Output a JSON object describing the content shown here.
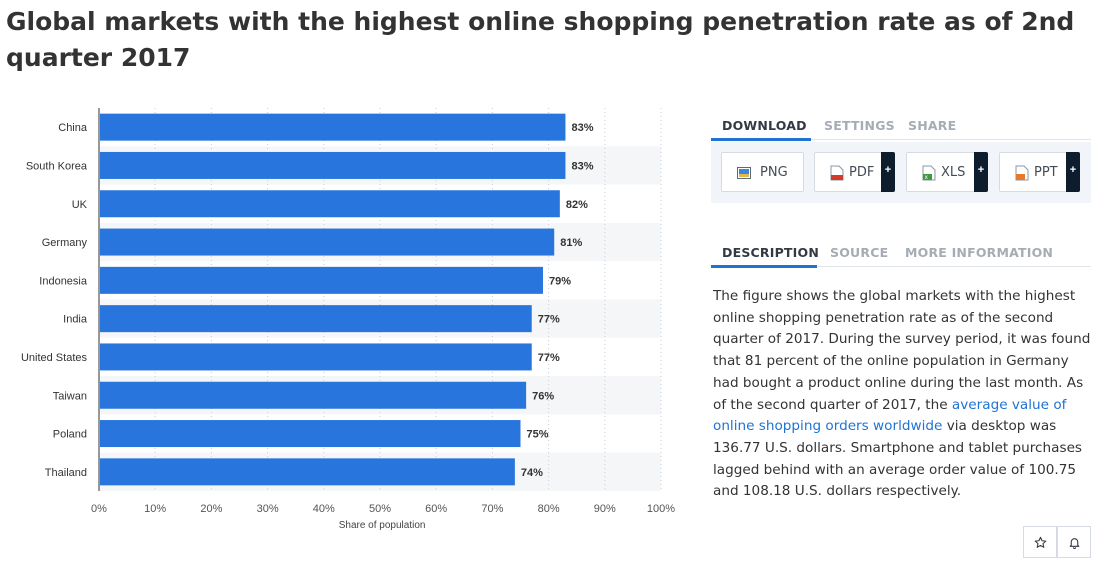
{
  "page": {
    "title": "Global markets with the highest online shopping penetration rate as of 2nd quarter 2017"
  },
  "chart_data": {
    "type": "bar",
    "orientation": "horizontal",
    "categories": [
      "China",
      "South Korea",
      "UK",
      "Germany",
      "Indonesia",
      "India",
      "United States",
      "Taiwan",
      "Poland",
      "Thailand"
    ],
    "values": [
      83,
      83,
      82,
      81,
      79,
      77,
      77,
      76,
      75,
      74
    ],
    "data_labels": [
      "83%",
      "83%",
      "82%",
      "81%",
      "79%",
      "77%",
      "77%",
      "76%",
      "75%",
      "74%"
    ],
    "xlabel": "Share of population",
    "ylabel": "",
    "xlim": [
      0,
      100
    ],
    "x_ticks": [
      "0%",
      "10%",
      "20%",
      "30%",
      "40%",
      "50%",
      "60%",
      "70%",
      "80%",
      "90%",
      "100%"
    ],
    "grid": "vertical dotted",
    "bar_color": "#2876dd",
    "stripe_color": "#f5f6f8"
  },
  "export_tabs": {
    "download": "DOWNLOAD",
    "settings": "SETTINGS",
    "share": "SHARE"
  },
  "download_buttons": [
    {
      "label": "PNG",
      "icon": "image-file-icon"
    },
    {
      "label": "PDF",
      "icon": "pdf-file-icon",
      "plus": "+"
    },
    {
      "label": "XLS",
      "icon": "excel-file-icon",
      "plus": "+"
    },
    {
      "label": "PPT",
      "icon": "powerpoint-file-icon",
      "plus": "+"
    }
  ],
  "info_tabs": {
    "description": "DESCRIPTION",
    "source": "SOURCE",
    "more_information": "MORE INFORMATION"
  },
  "description": {
    "part1": "The figure shows the global markets with the highest online shopping penetration rate as of the second quarter of 2017. During the survey period, it was found that 81 percent of the online population in Germany had bought a product online during the last month. As of the second quarter of 2017, the ",
    "link": "average value of online shopping orders worldwide",
    "part2": " via desktop was 136.77 U.S. dollars. Smartphone and tablet purchases lagged behind with an average order value of 100.75 and 108.18 U.S. dollars respectively."
  },
  "actions": {
    "favorite_icon": "star-icon",
    "notify_icon": "bell-icon"
  },
  "colors": {
    "accent": "#1f73d3",
    "dark": "#0e1d2e"
  }
}
